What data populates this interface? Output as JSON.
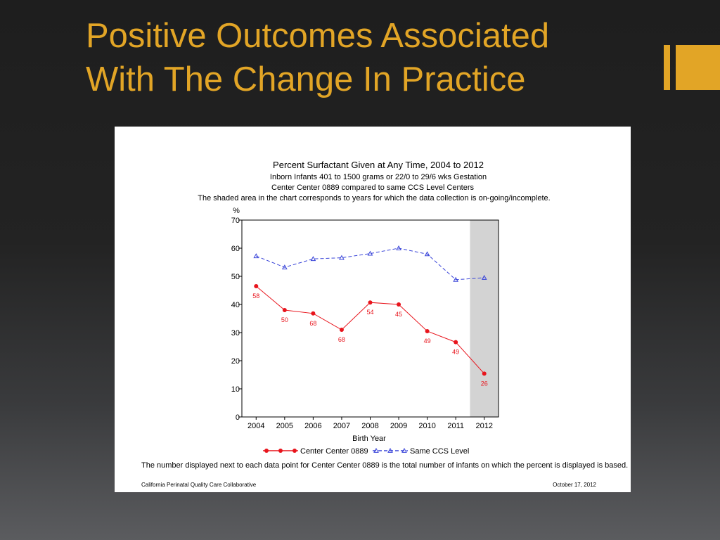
{
  "slide": {
    "title_line1": "Positive Outcomes Associated",
    "title_line2": "With The Change In Practice",
    "accent_color": "#e2a526"
  },
  "chart_data": {
    "type": "line",
    "title": "Percent Surfactant Given at Any Time, 2004 to 2012",
    "subtitle_lines": [
      "Inborn Infants 401 to 1500 grams or 22/0 to 29/6 wks Gestation",
      "Center Center 0889 compared to same CCS Level Centers",
      "The shaded area in the chart corresponds to years for which the data collection is on-going/incomplete."
    ],
    "xlabel": "Birth Year",
    "ylabel": "%",
    "categories": [
      "2004",
      "2005",
      "2006",
      "2007",
      "2008",
      "2009",
      "2010",
      "2011",
      "2012"
    ],
    "ylim": [
      0,
      70
    ],
    "yticks": [
      0,
      10,
      20,
      30,
      40,
      50,
      60,
      70
    ],
    "shaded_category": "2012",
    "grid": false,
    "legend_position": "bottom",
    "series": [
      {
        "name": "Center Center 0889",
        "color": "#e8141c",
        "marker": "circle",
        "line_style": "solid",
        "values": [
          46.5,
          38,
          36.8,
          31,
          40.7,
          40,
          30.5,
          26.6,
          15.4
        ],
        "point_labels": [
          "58",
          "50",
          "68",
          "68",
          "54",
          "45",
          "49",
          "49",
          "26"
        ]
      },
      {
        "name": "Same CCS Level",
        "color": "#3a45d9",
        "marker": "triangle",
        "line_style": "dashed",
        "values": [
          57.2,
          53.2,
          56.2,
          56.6,
          58.1,
          60,
          57.9,
          48.8,
          49.5
        ]
      }
    ],
    "footnote": "The number displayed next to each data point for Center Center 0889 is the total number of infants on which the percent is displayed is based.",
    "source": "California Perinatal Quality Care Collaborative",
    "date": "October 17, 2012"
  }
}
